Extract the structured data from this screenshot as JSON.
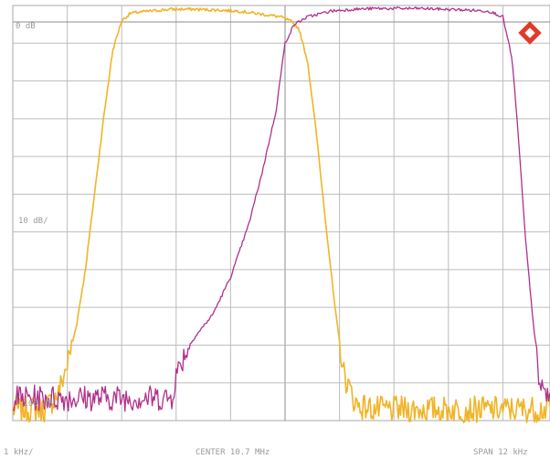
{
  "chart_data": {
    "type": "line",
    "grid": true,
    "x": {
      "center": "CENTER 10.7 MHz",
      "span": "SPAN 12 kHz",
      "division": "1 kHz/",
      "divisions": 10,
      "unit": "kHz offset",
      "range": [
        -6,
        6
      ]
    },
    "y": {
      "ref_label": "0 dB",
      "scale_label": "10 dB/",
      "bottom_label": "-100 dB",
      "unit": "dB",
      "range": [
        -110,
        0
      ]
    },
    "series": [
      {
        "color": "#f0b428",
        "points": [
          [
            -6,
            -107
          ],
          [
            -5.3,
            -107
          ],
          [
            -5,
            -103
          ],
          [
            -4.8,
            -95
          ],
          [
            -4.6,
            -85
          ],
          [
            -4.4,
            -70
          ],
          [
            -4.2,
            -50
          ],
          [
            -4.0,
            -30
          ],
          [
            -3.8,
            -12
          ],
          [
            -3.6,
            -4
          ],
          [
            -3.4,
            -2
          ],
          [
            -3.0,
            -1.5
          ],
          [
            -2.5,
            -1
          ],
          [
            -2.0,
            -1
          ],
          [
            -1.5,
            -1.2
          ],
          [
            -1.0,
            -1.5
          ],
          [
            -0.7,
            -2
          ],
          [
            -0.4,
            -2.5
          ],
          [
            -0.1,
            -3
          ],
          [
            0.1,
            -4
          ],
          [
            0.3,
            -6
          ],
          [
            0.5,
            -15
          ],
          [
            0.7,
            -35
          ],
          [
            0.9,
            -58
          ],
          [
            1.1,
            -80
          ],
          [
            1.3,
            -98
          ],
          [
            1.5,
            -104
          ],
          [
            1.6,
            -106
          ],
          [
            2.0,
            -107
          ],
          [
            6.0,
            -107
          ]
        ]
      },
      {
        "color": "#b0308c",
        "points": [
          [
            -6,
            -104
          ],
          [
            -4,
            -104
          ],
          [
            -2.5,
            -104
          ],
          [
            -2.4,
            -98
          ],
          [
            -2.2,
            -92
          ],
          [
            -2.0,
            -88
          ],
          [
            -1.6,
            -82
          ],
          [
            -1.2,
            -72
          ],
          [
            -0.8,
            -58
          ],
          [
            -0.5,
            -44
          ],
          [
            -0.2,
            -28
          ],
          [
            0,
            -10
          ],
          [
            0.2,
            -5
          ],
          [
            0.5,
            -3
          ],
          [
            1.0,
            -1.5
          ],
          [
            1.5,
            -1
          ],
          [
            2.0,
            -0.8
          ],
          [
            3.0,
            -0.8
          ],
          [
            4.0,
            -1.2
          ],
          [
            4.5,
            -1.5
          ],
          [
            4.8,
            -3
          ],
          [
            5.0,
            -14
          ],
          [
            5.1,
            -28
          ],
          [
            5.2,
            -45
          ],
          [
            5.3,
            -62
          ],
          [
            5.4,
            -75
          ],
          [
            5.5,
            -88
          ],
          [
            5.6,
            -100
          ],
          [
            5.8,
            -104
          ],
          [
            6.0,
            -104
          ]
        ]
      }
    ]
  },
  "logo": {
    "name": "rohde-schwarz-diamond-icon",
    "color": "#e23a28"
  }
}
